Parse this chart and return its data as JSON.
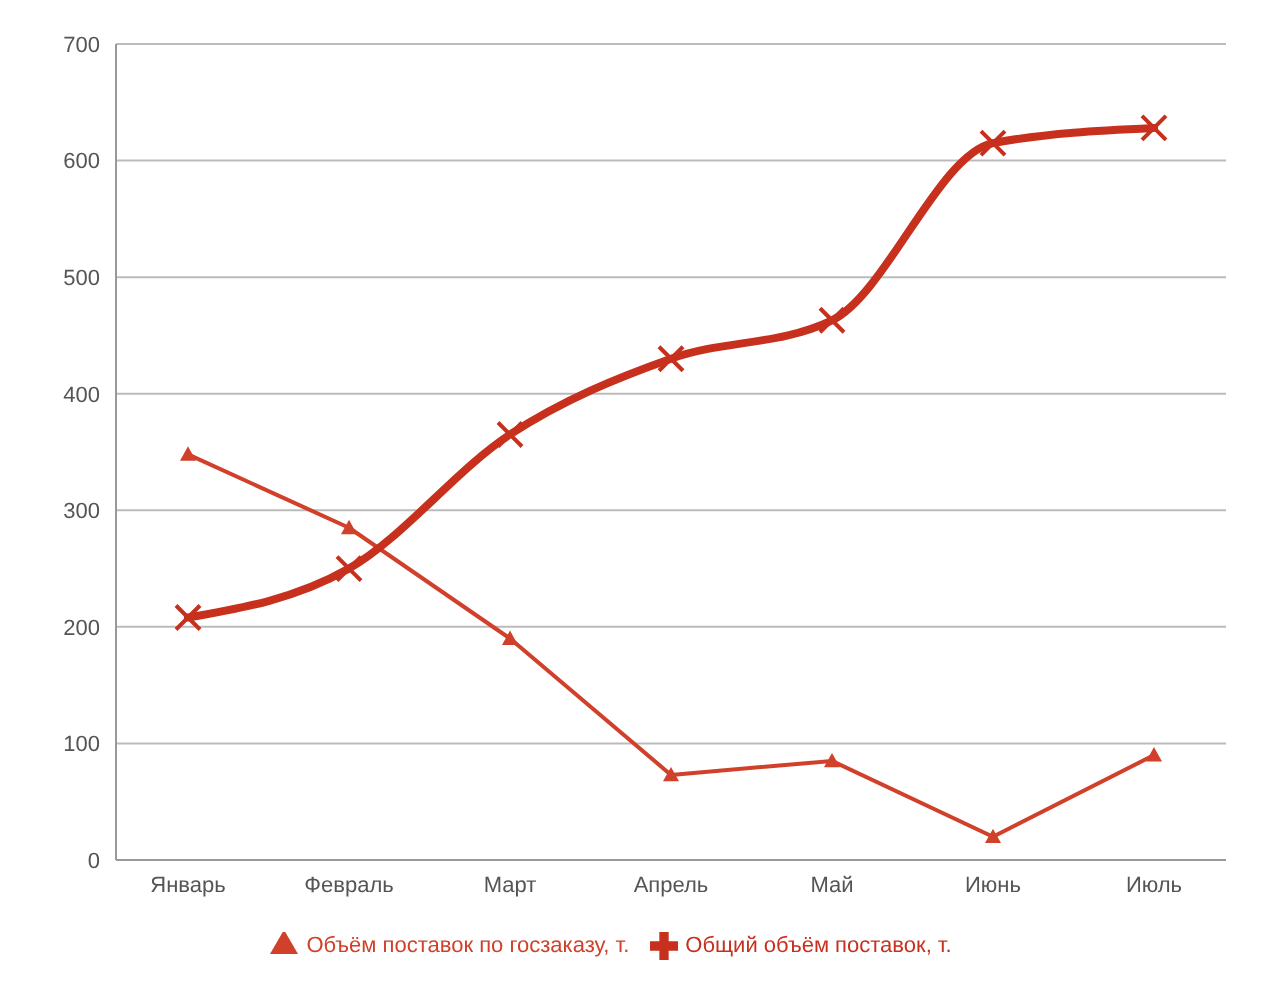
{
  "chart_data": {
    "type": "line",
    "categories": [
      "Январь",
      "Февраль",
      "Март",
      "Апрель",
      "Май",
      "Июнь",
      "Июль"
    ],
    "series": [
      {
        "name": "Объём поставок по госзаказу, т.",
        "color": "#d0402a",
        "marker": "triangle",
        "values": [
          348,
          285,
          190,
          73,
          85,
          20,
          90
        ]
      },
      {
        "name": "Общий объём поставок, т.",
        "color": "#c8301e",
        "marker": "cross",
        "values": [
          208,
          250,
          365,
          430,
          463,
          615,
          628
        ]
      }
    ],
    "ylim": [
      0,
      700
    ],
    "yticks": [
      0,
      100,
      200,
      300,
      400,
      500,
      600,
      700
    ],
    "grid": "y",
    "legend": "bottom",
    "line_style": "solid"
  }
}
